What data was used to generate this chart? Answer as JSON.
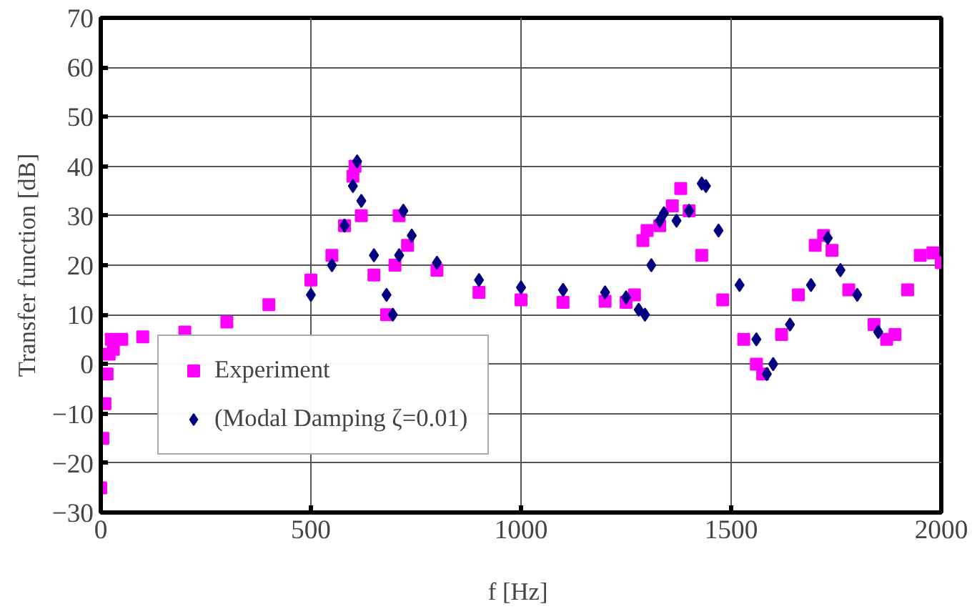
{
  "chart_data": {
    "type": "scatter",
    "xlabel": "f  [Hz]",
    "ylabel": "Transfer function [dB]",
    "xlim": [
      0,
      2000
    ],
    "ylim": [
      -30,
      70
    ],
    "xticks": [
      0,
      500,
      1000,
      1500,
      2000
    ],
    "yticks": [
      -30,
      -20,
      -10,
      0,
      10,
      20,
      30,
      40,
      50,
      60,
      70
    ],
    "grid": true,
    "legend": "bottom left",
    "series": [
      {
        "name": "Experiment",
        "color": "#ff00ff",
        "marker": "square",
        "x": [
          0,
          5,
          10,
          15,
          20,
          25,
          30,
          50,
          100,
          200,
          300,
          400,
          500,
          550,
          580,
          600,
          605,
          620,
          650,
          680,
          700,
          710,
          730,
          800,
          900,
          1000,
          1100,
          1200,
          1250,
          1270,
          1290,
          1300,
          1330,
          1360,
          1380,
          1400,
          1430,
          1480,
          1530,
          1560,
          1575,
          1620,
          1660,
          1700,
          1720,
          1740,
          1780,
          1840,
          1870,
          1890,
          1920,
          1950,
          1980,
          2000
        ],
        "values": [
          -25,
          -15,
          -8,
          -2,
          2,
          5,
          3,
          5,
          5.5,
          6.5,
          8.5,
          12,
          17,
          22,
          28,
          38,
          40,
          30,
          18,
          10,
          20,
          30,
          24,
          19,
          14.5,
          13,
          12.5,
          12.7,
          12.5,
          14,
          25,
          27,
          28,
          32,
          35.5,
          31,
          22,
          13,
          5,
          0,
          -2,
          6,
          14,
          24,
          26,
          23,
          15,
          8,
          5,
          6,
          15,
          22,
          22.5,
          20.5
        ]
      },
      {
        "name": "(Modal Damping ζ=0.01)",
        "color": "#000080",
        "marker": "diamond",
        "x": [
          500,
          550,
          580,
          600,
          610,
          620,
          650,
          680,
          695,
          710,
          720,
          740,
          800,
          900,
          1000,
          1100,
          1200,
          1250,
          1280,
          1295,
          1310,
          1330,
          1340,
          1370,
          1400,
          1430,
          1440,
          1470,
          1520,
          1560,
          1585,
          1600,
          1640,
          1690,
          1730,
          1760,
          1800,
          1850
        ],
        "values": [
          14,
          20,
          28,
          36,
          41,
          33,
          22,
          14,
          10,
          22,
          31,
          26,
          20.5,
          17,
          15.5,
          15,
          14.5,
          13.5,
          11,
          10,
          20,
          29,
          30.5,
          29,
          31,
          36.5,
          36,
          27,
          16,
          5,
          -2,
          0,
          8,
          16,
          25.5,
          19,
          14,
          6.5
        ]
      }
    ]
  }
}
